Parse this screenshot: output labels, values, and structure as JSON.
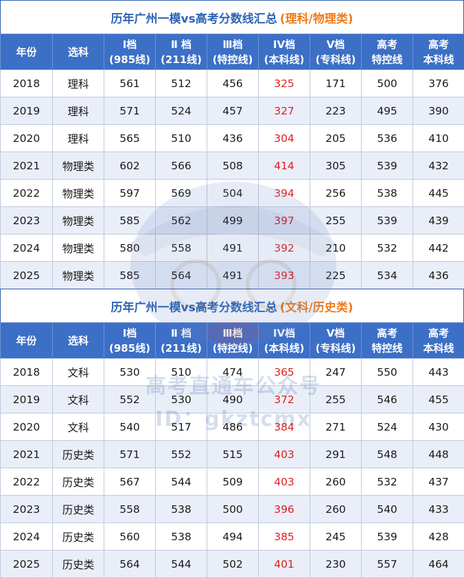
{
  "tables": [
    {
      "title_main": "历年广州一模vs高考分数线汇总",
      "title_paren": "(理科/物理类)",
      "headers": [
        "年份",
        "选科",
        "I档\n(985线)",
        "Ⅱ 档\n(211线)",
        "Ⅲ档\n(特控线)",
        "IV档\n(本科线)",
        "V档\n(专科线)",
        "高考\n特控线",
        "高考\n本科线"
      ],
      "rows": [
        [
          "2018",
          "理科",
          "561",
          "512",
          "456",
          "325",
          "171",
          "500",
          "376"
        ],
        [
          "2019",
          "理科",
          "571",
          "524",
          "457",
          "327",
          "223",
          "495",
          "390"
        ],
        [
          "2020",
          "理科",
          "565",
          "510",
          "436",
          "304",
          "205",
          "536",
          "410"
        ],
        [
          "2021",
          "物理类",
          "602",
          "566",
          "508",
          "414",
          "305",
          "539",
          "432"
        ],
        [
          "2022",
          "物理类",
          "597",
          "569",
          "504",
          "394",
          "256",
          "538",
          "445"
        ],
        [
          "2023",
          "物理类",
          "585",
          "562",
          "499",
          "397",
          "255",
          "539",
          "439"
        ],
        [
          "2024",
          "物理类",
          "580",
          "558",
          "491",
          "392",
          "210",
          "532",
          "442"
        ],
        [
          "2025",
          "物理类",
          "585",
          "564",
          "491",
          "393",
          "225",
          "534",
          "436"
        ]
      ]
    },
    {
      "title_main": "历年广州一模vs高考分数线汇总",
      "title_paren": "(文科/历史类)",
      "headers": [
        "年份",
        "选科",
        "I档\n(985线)",
        "Ⅱ 档\n(211线)",
        "Ⅲ档\n(特控线)",
        "IV档\n(本科线)",
        "V档\n(专科线)",
        "高考\n特控线",
        "高考\n本科线"
      ],
      "rows": [
        [
          "2018",
          "文科",
          "530",
          "510",
          "474",
          "365",
          "247",
          "550",
          "443"
        ],
        [
          "2019",
          "文科",
          "552",
          "530",
          "490",
          "372",
          "255",
          "546",
          "455"
        ],
        [
          "2020",
          "文科",
          "540",
          "517",
          "486",
          "384",
          "271",
          "524",
          "430"
        ],
        [
          "2021",
          "历史类",
          "571",
          "552",
          "515",
          "403",
          "291",
          "548",
          "448"
        ],
        [
          "2022",
          "历史类",
          "567",
          "544",
          "509",
          "403",
          "260",
          "532",
          "437"
        ],
        [
          "2023",
          "历史类",
          "558",
          "538",
          "500",
          "396",
          "260",
          "540",
          "433"
        ],
        [
          "2024",
          "历史类",
          "560",
          "538",
          "494",
          "385",
          "245",
          "539",
          "428"
        ],
        [
          "2025",
          "历史类",
          "564",
          "544",
          "502",
          "401",
          "230",
          "557",
          "464"
        ]
      ]
    }
  ],
  "highlight_column_index": 5,
  "highlight_color": "#e02020",
  "header_bg": "#3c6fc6",
  "title_color": "#2e64b4",
  "title_paren_color": "#f07b19",
  "watermark": {
    "line1": "高考直通车公众号",
    "line2": "ID：gkztcmx"
  }
}
